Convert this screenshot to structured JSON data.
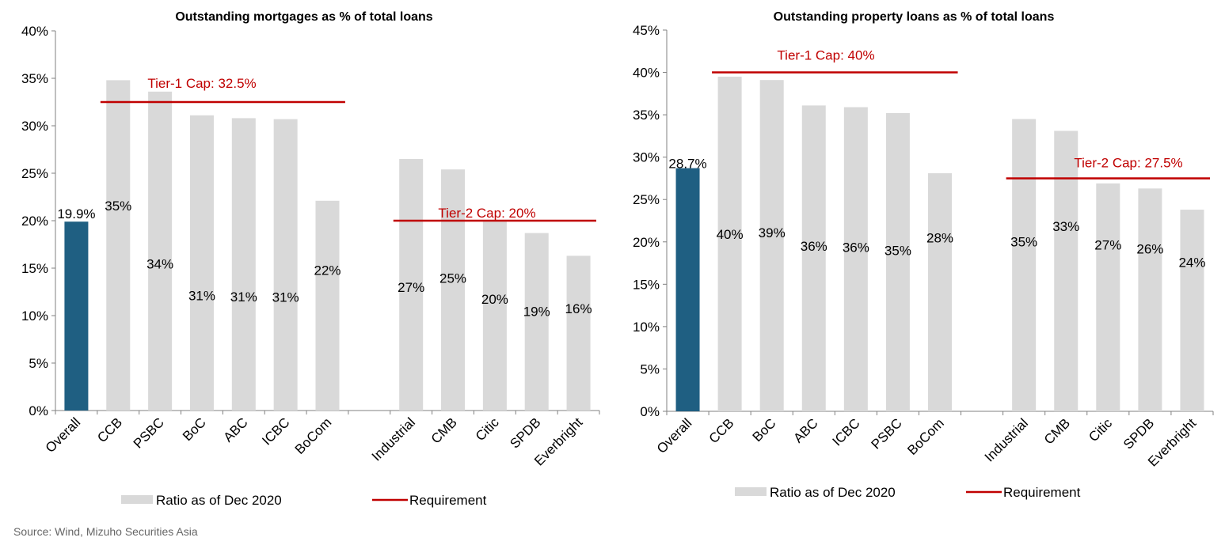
{
  "colors": {
    "overall": "#1f5f82",
    "bar": "#d9d9d9",
    "requirement": "#c00000",
    "axis": "#808080"
  },
  "source": "Source: Wind, Mizuho Securities Asia",
  "chart_data": [
    {
      "type": "bar",
      "title": "Outstanding mortgages as % of total loans",
      "ylim": [
        0,
        40
      ],
      "ytick_step": 5,
      "yticks": [
        "0%",
        "5%",
        "10%",
        "15%",
        "20%",
        "25%",
        "30%",
        "35%",
        "40%"
      ],
      "categories": [
        "Overall",
        "CCB",
        "PSBC",
        "BoC",
        "ABC",
        "ICBC",
        "BoCom",
        "",
        "Industrial",
        "CMB",
        "Citic",
        "SPDB",
        "Everbright"
      ],
      "values": [
        19.9,
        34.8,
        33.6,
        31.1,
        30.8,
        30.7,
        22.1,
        null,
        26.5,
        25.4,
        19.9,
        18.7,
        16.3
      ],
      "data_labels": [
        "19.9%",
        "35%",
        "34%",
        "31%",
        "31%",
        "31%",
        "22%",
        "",
        "27%",
        "25%",
        "20%",
        "19%",
        "16%"
      ],
      "highlight_index": 0,
      "requirements": [
        {
          "label": "Tier-1 Cap: 32.5%",
          "value": 32.5,
          "from_index": 1,
          "to_index": 6
        },
        {
          "label": "Tier-2 Cap: 20%",
          "value": 20,
          "from_index": 8,
          "to_index": 12
        }
      ],
      "legend": {
        "series": "Ratio as of Dec 2020",
        "line": "Requirement",
        "position": "bottom"
      }
    },
    {
      "type": "bar",
      "title": "Outstanding property loans as % of total loans",
      "ylim": [
        0,
        45
      ],
      "ytick_step": 5,
      "yticks": [
        "0%",
        "5%",
        "10%",
        "15%",
        "20%",
        "25%",
        "30%",
        "35%",
        "40%",
        "45%"
      ],
      "categories": [
        "Overall",
        "CCB",
        "BoC",
        "ABC",
        "ICBC",
        "PSBC",
        "BoCom",
        "",
        "Industrial",
        "CMB",
        "Citic",
        "SPDB",
        "Everbright"
      ],
      "values": [
        28.7,
        39.5,
        39.1,
        36.1,
        35.9,
        35.2,
        28.1,
        null,
        34.5,
        33.1,
        26.9,
        26.3,
        23.8
      ],
      "data_labels": [
        "28.7%",
        "40%",
        "39%",
        "36%",
        "36%",
        "35%",
        "28%",
        "",
        "35%",
        "33%",
        "27%",
        "26%",
        "24%"
      ],
      "highlight_index": 0,
      "requirements": [
        {
          "label": "Tier-1 Cap: 40%",
          "value": 40,
          "from_index": 1,
          "to_index": 6
        },
        {
          "label": "Tier-2 Cap: 27.5%",
          "value": 27.5,
          "from_index": 8,
          "to_index": 12
        }
      ],
      "legend": {
        "series": "Ratio as of Dec 2020",
        "line": "Requirement",
        "position": "bottom"
      }
    }
  ]
}
